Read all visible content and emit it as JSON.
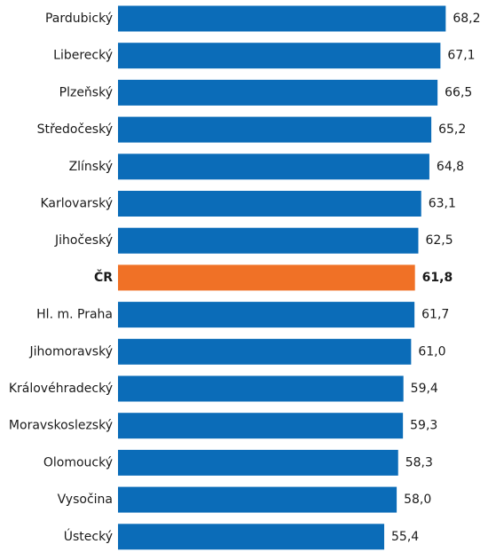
{
  "chart_data": {
    "type": "bar",
    "orientation": "horizontal",
    "categories": [
      "Pardubický",
      "Liberecký",
      "Plzeňský",
      "Středočeský",
      "Zlínský",
      "Karlovarský",
      "Jihočeský",
      "ČR",
      "Hl. m. Praha",
      "Jihomoravský",
      "Královéhradecký",
      "Moravskoslezský",
      "Olomoucký",
      "Vysočina",
      "Ústecký"
    ],
    "values": [
      68.2,
      67.1,
      66.5,
      65.2,
      64.8,
      63.1,
      62.5,
      61.8,
      61.7,
      61.0,
      59.4,
      59.3,
      58.3,
      58.0,
      55.4
    ],
    "value_labels": [
      "68,2",
      "67,1",
      "66,5",
      "65,2",
      "64,8",
      "63,1",
      "62,5",
      "61,8",
      "61,7",
      "61,0",
      "59,4",
      "59,3",
      "58,3",
      "58,0",
      "55,4"
    ],
    "colors": [
      "#0b6cb8",
      "#0b6cb8",
      "#0b6cb8",
      "#0b6cb8",
      "#0b6cb8",
      "#0b6cb8",
      "#0b6cb8",
      "#f07126",
      "#0b6cb8",
      "#0b6cb8",
      "#0b6cb8",
      "#0b6cb8",
      "#0b6cb8",
      "#0b6cb8",
      "#0b6cb8"
    ],
    "xlim": [
      0,
      77
    ]
  }
}
